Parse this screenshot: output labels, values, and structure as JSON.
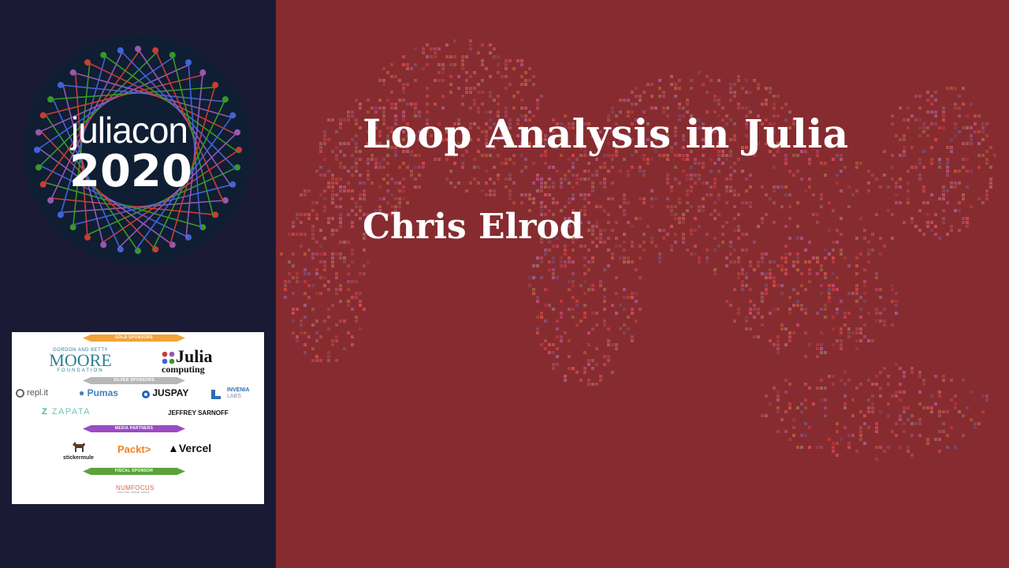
{
  "slide": {
    "title": "Loop Analysis in Julia",
    "speaker": "Chris Elrod"
  },
  "logo": {
    "line1": "juliacon",
    "line2": "2020"
  },
  "sponsors": {
    "gold_label": "GOLD SPONSORS",
    "gold": {
      "moore_top": "GORDON AND BETTY",
      "moore_main": "MOORE",
      "moore_bottom": "FOUNDATION",
      "julia_main": "Julia",
      "julia_sub": "computing"
    },
    "silver_label": "SILVER SPONSORS",
    "silver": [
      "repl.it",
      "Pumas",
      "JUSPAY",
      "INVENIA",
      "LABS",
      "ZAPATA",
      "JEFFREY SARNOFF"
    ],
    "media_label": "MEDIA PARTNERS",
    "media": [
      "stickermule",
      "Packt>",
      "Vercel"
    ],
    "fiscal_label": "FISCAL SPONSOR",
    "fiscal": "NUMFOCUS",
    "fiscal_sub": "OPEN CODE = BETTER SCIENCE"
  },
  "colors": {
    "left_bg": "#1b1a35",
    "right_bg": "#862c30",
    "gold": "#f2a33a",
    "silver": "#b7b7b7",
    "media": "#9a4cc3",
    "fiscal": "#5aa33a"
  }
}
